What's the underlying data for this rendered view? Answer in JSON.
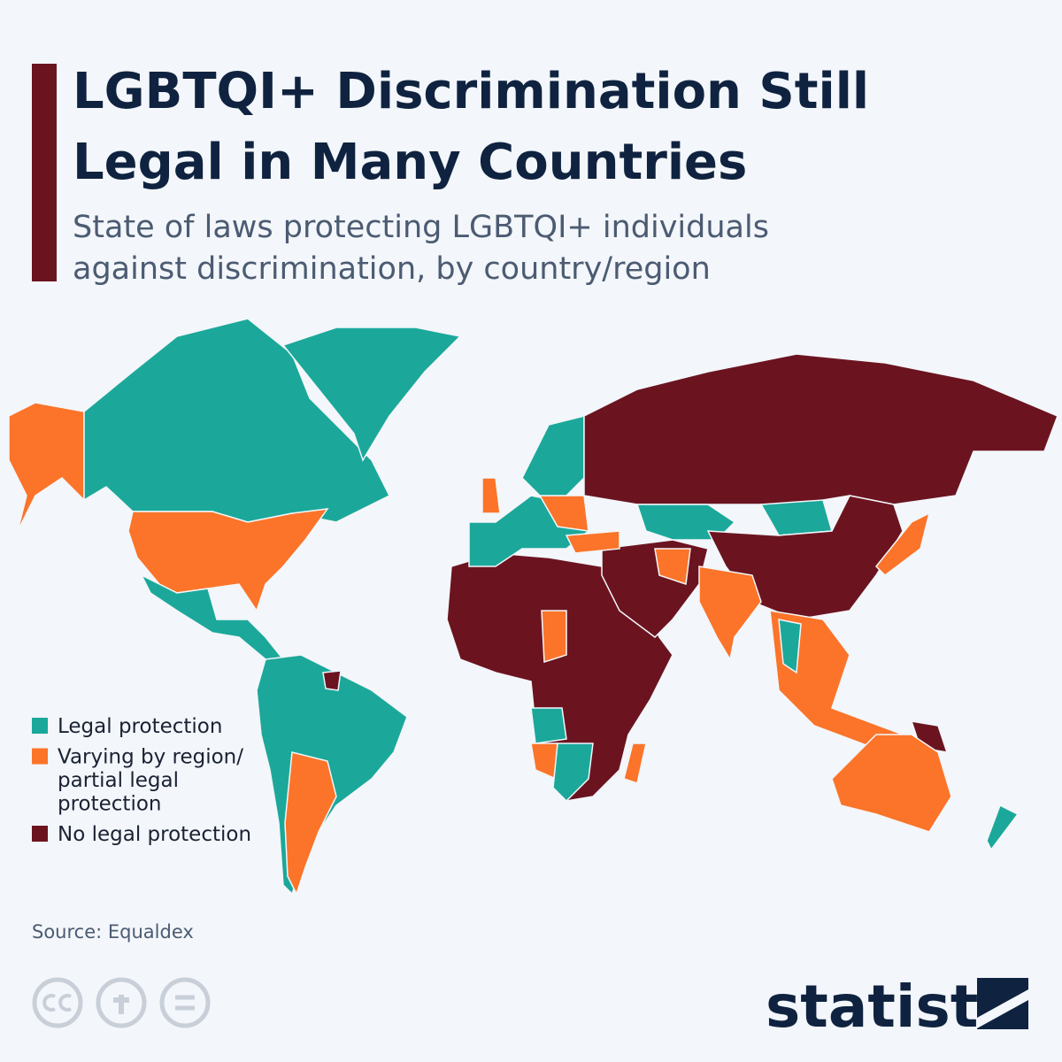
{
  "header": {
    "title": [
      "LGBTQI+ Discrimination Still",
      "Legal in Many Countries"
    ],
    "subtitle": [
      "State of laws protecting LGBTQI+ individuals",
      "against discrimination, by country/region"
    ]
  },
  "legend": [
    {
      "label": [
        "Legal protection"
      ],
      "color": "#1ba89a"
    },
    {
      "label": [
        "Varying by region/",
        "partial legal",
        "protection"
      ],
      "color": "#fb7429"
    },
    {
      "label": [
        "No legal protection"
      ],
      "color": "#6b1420"
    }
  ],
  "source": "Source: Equaldex",
  "brand": "statista"
}
